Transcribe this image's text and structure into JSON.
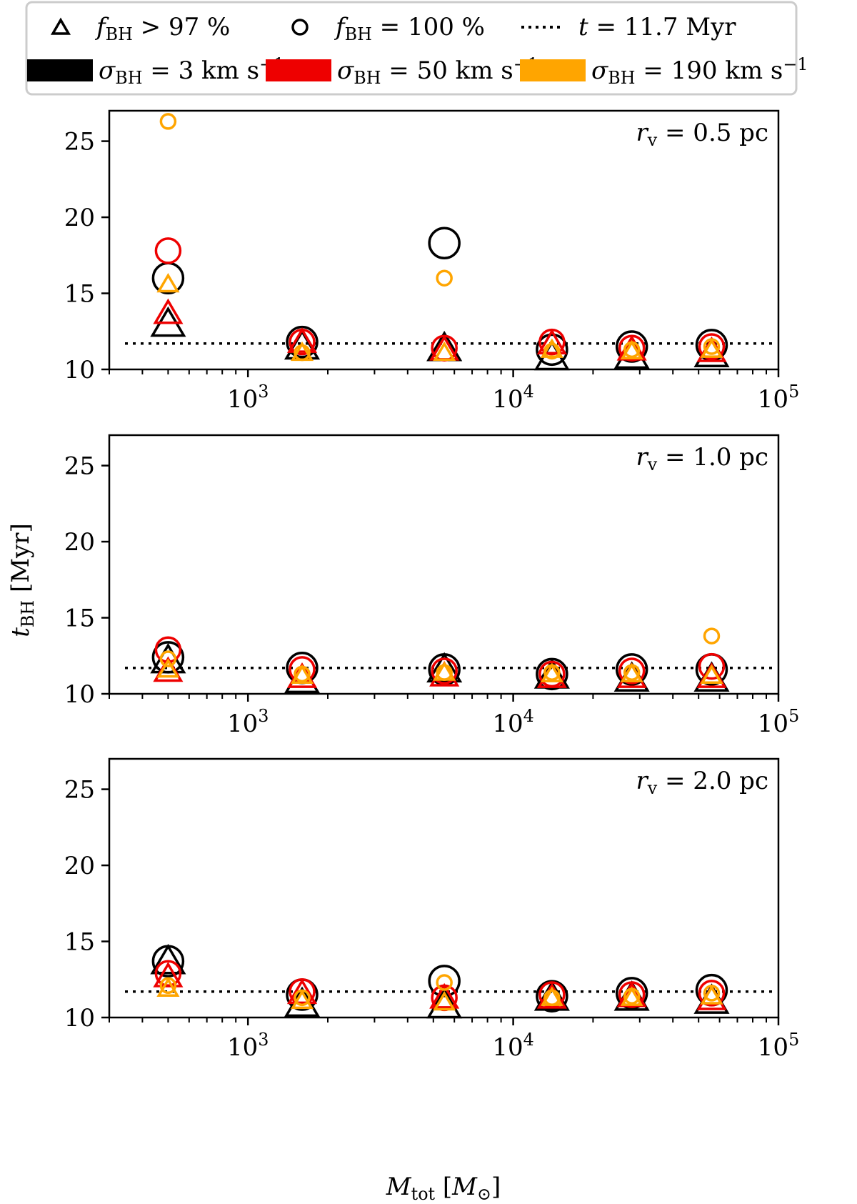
{
  "figure": {
    "ylabel": "t_BH [Myr]",
    "xlabel": "M_tot [M_⊙]",
    "legend": {
      "placement": "top",
      "marker_entries": [
        {
          "marker": "triangle",
          "base": "f",
          "sub": "BH",
          "rest": " > 97 %"
        },
        {
          "marker": "circle",
          "base": "f",
          "sub": "BH",
          "rest": " = 100 %"
        },
        {
          "marker": "dotted-line",
          "base": "t",
          "sub": "",
          "rest": " = 11.7 Myr"
        }
      ],
      "color_entries": [
        {
          "key": "s3",
          "color": "#000000",
          "base": "σ",
          "sub": "BH",
          "rest": " = 3 km s",
          "sup": "−1"
        },
        {
          "key": "s50",
          "color": "#ee0000",
          "base": "σ",
          "sub": "BH",
          "rest": " = 50 km s",
          "sup": "−1"
        },
        {
          "key": "s190",
          "color": "#ffa500",
          "base": "σ",
          "sub": "BH",
          "rest": " = 190 km s",
          "sup": "−1"
        }
      ]
    }
  },
  "chart_data": {
    "type": "scatter",
    "shared": {
      "x_scale": "log",
      "xlim": [
        300,
        100000
      ],
      "ylim": [
        10,
        27
      ],
      "x_ticks": [
        {
          "value": 1000,
          "label": "10^3"
        },
        {
          "value": 10000,
          "label": "10^4"
        },
        {
          "value": 100000,
          "label": "10^5"
        }
      ],
      "y_ticks": [
        10,
        15,
        20,
        25
      ],
      "reference_line": {
        "y": 11.7,
        "style": "dotted"
      },
      "x_values": [
        500,
        1600,
        5500,
        14000,
        28000,
        56000
      ],
      "colors": {
        "s3": "#000000",
        "s50": "#ee0000",
        "s190": "#ffa500"
      },
      "grid": false
    },
    "panels": [
      {
        "label": "r_v = 0.5 pc",
        "annotation": {
          "base": "r",
          "sub": "v",
          "rest": " = 0.5 pc"
        },
        "series": {
          "s3": {
            "tri": [
              13.0,
              11.5,
              11.4,
              10.8,
              10.9,
              11.0
            ],
            "circ": [
              16.0,
              11.8,
              18.3,
              11.3,
              11.5,
              11.6
            ]
          },
          "s50": {
            "tri": [
              13.7,
              11.8,
              11.3,
              11.7,
              11.3,
              11.2
            ],
            "circ": [
              17.8,
              11.8,
              11.4,
              11.8,
              11.4,
              11.5
            ]
          },
          "s190": {
            "tri": [
              15.6,
              11.1,
              11.1,
              11.3,
              11.2,
              11.3
            ],
            "circ": [
              26.3,
              11.1,
              16.0,
              11.2,
              11.3,
              11.5
            ]
          }
        }
      },
      {
        "label": "r_v = 1.0 pc",
        "annotation": {
          "base": "r",
          "sub": "v",
          "rest": " = 1.0 pc"
        },
        "series": {
          "s3": {
            "tri": [
              12.2,
              10.9,
              11.6,
              11.2,
              11.0,
              11.0
            ],
            "circ": [
              12.4,
              11.7,
              11.6,
              11.3,
              11.6,
              11.6
            ]
          },
          "s50": {
            "tri": [
              11.5,
              11.1,
              11.2,
              11.1,
              11.1,
              11.1
            ],
            "circ": [
              12.9,
              11.6,
              11.5,
              11.3,
              11.5,
              11.8
            ]
          },
          "s190": {
            "tri": [
              11.6,
              11.2,
              11.4,
              11.3,
              11.3,
              11.2
            ],
            "circ": [
              12.3,
              11.3,
              11.4,
              11.4,
              11.4,
              13.8
            ]
          }
        }
      },
      {
        "label": "r_v = 2.0 pc",
        "annotation": {
          "base": "r",
          "sub": "v",
          "rest": " = 2.0 pc"
        },
        "series": {
          "s3": {
            "tri": [
              13.7,
              10.9,
              10.8,
              11.3,
              11.3,
              11.1
            ],
            "circ": [
              13.7,
              11.5,
              12.4,
              11.4,
              11.6,
              11.8
            ]
          },
          "s50": {
            "tri": [
              12.7,
              11.6,
              11.3,
              11.3,
              11.4,
              11.2
            ],
            "circ": [
              12.9,
              11.7,
              11.3,
              11.5,
              11.5,
              11.6
            ]
          },
          "s190": {
            "tri": [
              11.9,
              11.1,
              11.0,
              11.3,
              11.3,
              11.4
            ],
            "circ": [
              12.1,
              11.3,
              12.3,
              11.3,
              11.4,
              11.6
            ]
          }
        }
      }
    ]
  }
}
